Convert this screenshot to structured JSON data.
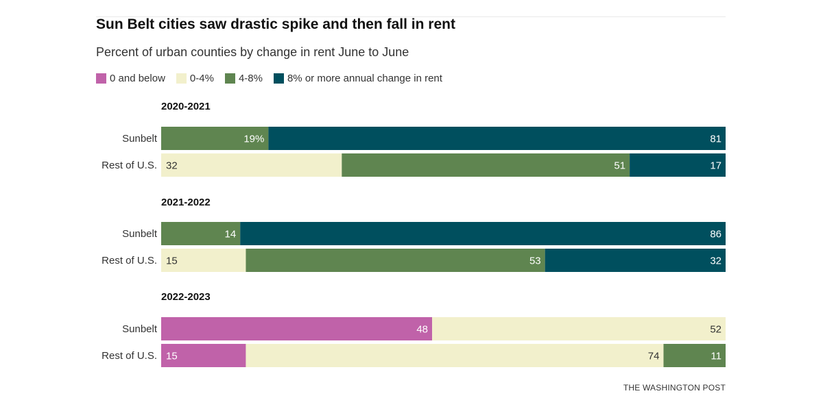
{
  "chart_data": {
    "type": "bar",
    "orientation": "horizontal",
    "stacked": true,
    "title": "Sun Belt cities saw drastic spike and then fall in rent",
    "subtitle": "Percent of urban counties by change in rent June to June",
    "legend_position": "top-left",
    "legend": [
      {
        "key": "below",
        "label": "0 and below",
        "color": "#c062a9"
      },
      {
        "key": "low",
        "label": "0-4%",
        "color": "#f2f0cc"
      },
      {
        "key": "mid",
        "label": "4-8%",
        "color": "#5f8550"
      },
      {
        "key": "high",
        "label": "8% or more annual change in rent",
        "color": "#004f5e"
      }
    ],
    "ylim": [
      0,
      100
    ],
    "groups": [
      {
        "label": "2020-2021",
        "rows": [
          {
            "label": "Sunbelt",
            "segments": [
              {
                "key": "mid",
                "value": 19,
                "text": "19%"
              },
              {
                "key": "high",
                "value": 81,
                "text": "81"
              }
            ]
          },
          {
            "label": "Rest of U.S.",
            "segments": [
              {
                "key": "low",
                "value": 32,
                "text": "32"
              },
              {
                "key": "mid",
                "value": 51,
                "text": "51"
              },
              {
                "key": "high",
                "value": 17,
                "text": "17"
              }
            ]
          }
        ]
      },
      {
        "label": "2021-2022",
        "rows": [
          {
            "label": "Sunbelt",
            "segments": [
              {
                "key": "mid",
                "value": 14,
                "text": "14"
              },
              {
                "key": "high",
                "value": 86,
                "text": "86"
              }
            ]
          },
          {
            "label": "Rest of U.S.",
            "segments": [
              {
                "key": "low",
                "value": 15,
                "text": "15"
              },
              {
                "key": "mid",
                "value": 53,
                "text": "53"
              },
              {
                "key": "high",
                "value": 32,
                "text": "32"
              }
            ]
          }
        ]
      },
      {
        "label": "2022-2023",
        "rows": [
          {
            "label": "Sunbelt",
            "segments": [
              {
                "key": "below",
                "value": 48,
                "text": "48"
              },
              {
                "key": "low",
                "value": 52,
                "text": "52"
              }
            ]
          },
          {
            "label": "Rest of U.S.",
            "segments": [
              {
                "key": "below",
                "value": 15,
                "text": "15"
              },
              {
                "key": "low",
                "value": 74,
                "text": "74"
              },
              {
                "key": "mid",
                "value": 11,
                "text": "11"
              }
            ]
          }
        ]
      }
    ]
  },
  "credit": "THE WASHINGTON POST"
}
